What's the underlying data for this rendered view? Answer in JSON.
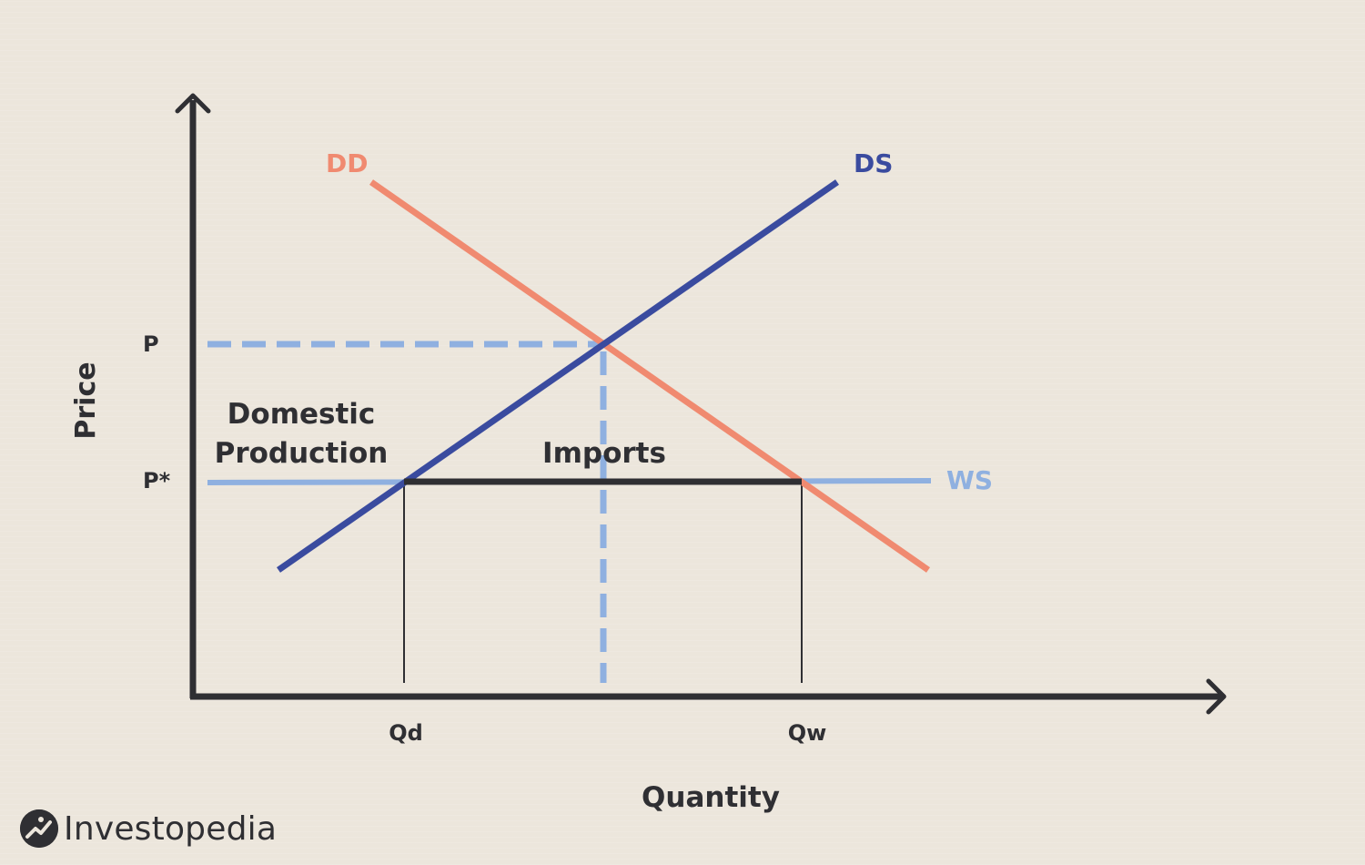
{
  "axes": {
    "y_label": "Price",
    "x_label": "Quantity"
  },
  "price_levels": {
    "p": "P",
    "p_star": "P*"
  },
  "quantity_levels": {
    "qd": "Qd",
    "qw": "Qw"
  },
  "curves": {
    "domestic_demand": "DD",
    "domestic_supply": "DS",
    "world_supply": "WS"
  },
  "regions": {
    "domestic_line1": "Domestic",
    "domestic_line2": "Production",
    "imports": "Imports"
  },
  "brand": {
    "name": "Investopedia"
  },
  "colors": {
    "background": "#ece6dc",
    "axis": "#2f2f33",
    "demand": "#f08a70",
    "supply": "#3a4b9f",
    "world_supply": "#8fb0e0",
    "imports_bar": "#2f2f33"
  }
}
